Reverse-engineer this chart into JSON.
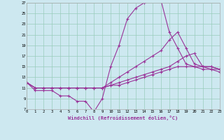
{
  "xlabel": "Windchill (Refroidissement éolien,°C)",
  "bg_color": "#cde8f0",
  "line_color": "#993399",
  "grid_color": "#99ccbb",
  "xmin": 0,
  "xmax": 23,
  "ymin": 7,
  "ymax": 27,
  "yticks": [
    7,
    9,
    11,
    13,
    15,
    17,
    19,
    21,
    23,
    25,
    27
  ],
  "xticks": [
    0,
    1,
    2,
    3,
    4,
    5,
    6,
    7,
    8,
    9,
    10,
    11,
    12,
    13,
    14,
    15,
    16,
    17,
    18,
    19,
    20,
    21,
    22,
    23
  ],
  "lines": [
    {
      "x": [
        0,
        1,
        2,
        3,
        4,
        5,
        6,
        7,
        8,
        9,
        10,
        11,
        12,
        13,
        14,
        15,
        16,
        17,
        18,
        19,
        20,
        21,
        22,
        23
      ],
      "y": [
        12,
        10.5,
        10.5,
        10.5,
        9.5,
        9.5,
        8.5,
        8.5,
        6.5,
        9.0,
        15,
        19,
        24,
        26,
        27,
        27.5,
        27.5,
        21.5,
        18.5,
        15.5,
        15,
        14.5,
        14.5,
        14.5
      ]
    },
    {
      "x": [
        0,
        1,
        2,
        3,
        4,
        5,
        6,
        7,
        8,
        9,
        10,
        11,
        12,
        13,
        14,
        15,
        16,
        17,
        18,
        19,
        20,
        21,
        22,
        23
      ],
      "y": [
        12,
        11,
        11,
        11,
        11,
        11,
        11,
        11,
        11,
        11,
        12,
        13,
        14,
        15,
        16,
        17,
        18,
        20,
        21.5,
        18.5,
        15.5,
        15,
        15,
        14.5
      ]
    },
    {
      "x": [
        0,
        1,
        2,
        3,
        4,
        5,
        6,
        7,
        8,
        9,
        10,
        11,
        12,
        13,
        14,
        15,
        16,
        17,
        18,
        19,
        20,
        21,
        22,
        23
      ],
      "y": [
        12,
        11,
        11,
        11,
        11,
        11,
        11,
        11,
        11,
        11,
        11.5,
        12,
        12.5,
        13,
        13.5,
        14,
        14.5,
        15,
        16,
        17,
        17.5,
        15,
        15,
        14.5
      ]
    },
    {
      "x": [
        0,
        1,
        2,
        3,
        4,
        5,
        6,
        7,
        8,
        9,
        10,
        11,
        12,
        13,
        14,
        15,
        16,
        17,
        18,
        19,
        20,
        21,
        22,
        23
      ],
      "y": [
        12,
        11,
        11,
        11,
        11,
        11,
        11,
        11,
        11,
        11,
        11.5,
        11.5,
        12,
        12.5,
        13,
        13.5,
        14,
        14.5,
        15,
        15,
        15,
        15,
        14.5,
        14
      ]
    }
  ]
}
